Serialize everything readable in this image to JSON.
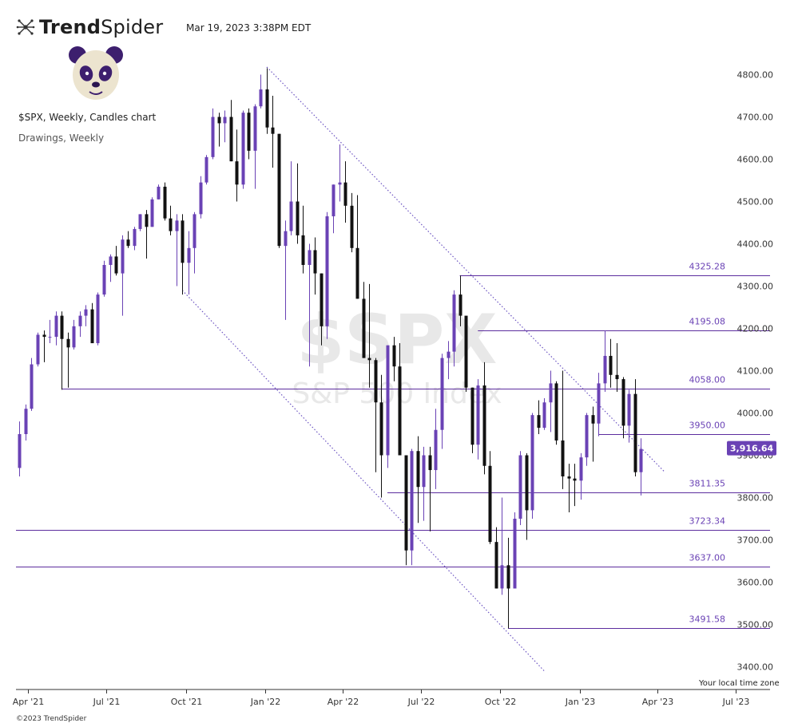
{
  "header": {
    "brand_bold": "Trend",
    "brand_light": "Spider",
    "timestamp": "Mar 19, 2023 3:38PM EDT",
    "chart_title": "$SPX, Weekly, Candles chart",
    "drawings_label": "Drawings, Weekly"
  },
  "footer": {
    "timezone_label": "Your local time zone",
    "copyright": "©2023 TrendSpider"
  },
  "colors": {
    "up": "#6a42b5",
    "down": "#111111",
    "level_line": "#5c2d9e",
    "level_label": "#6a42b5",
    "channel": "#6d55c2",
    "price_tag": "#6a42b5",
    "watermark": "#e8e8e8"
  },
  "icons": [
    "trendspider-logo-icon",
    "panda-avatar-icon"
  ],
  "chart_data": {
    "type": "candlestick",
    "symbol": "$SPX",
    "watermark_title": "$SPX",
    "watermark_subtitle": "S&P 500 Index",
    "y_ticks": [
      "3400.00",
      "3500.00",
      "3600.00",
      "3700.00",
      "3800.00",
      "3900.00",
      "4000.00",
      "4100.00",
      "4200.00",
      "4300.00",
      "4400.00",
      "4500.00",
      "4600.00",
      "4700.00",
      "4800.00"
    ],
    "y_range": [
      3330,
      4870
    ],
    "x_ticks": [
      {
        "label": "Apr '21",
        "date": "2021-04-01"
      },
      {
        "label": "Jul '21",
        "date": "2021-07-01"
      },
      {
        "label": "Oct '21",
        "date": "2021-10-01"
      },
      {
        "label": "Jan '22",
        "date": "2022-01-01"
      },
      {
        "label": "Apr '22",
        "date": "2022-04-01"
      },
      {
        "label": "Jul '22",
        "date": "2022-07-01"
      },
      {
        "label": "Oct '22",
        "date": "2022-10-01"
      },
      {
        "label": "Jan '23",
        "date": "2023-01-01"
      },
      {
        "label": "Apr '23",
        "date": "2023-04-01"
      },
      {
        "label": "Jul '23",
        "date": "2023-07-01"
      }
    ],
    "x_range": [
      "2021-03-18",
      "2023-08-10"
    ],
    "candles": [
      {
        "date": "2021-03-22",
        "o": 3870,
        "h": 3980,
        "l": 3850,
        "c": 3950
      },
      {
        "date": "2021-03-29",
        "o": 3950,
        "h": 4020,
        "l": 3935,
        "c": 4010
      },
      {
        "date": "2021-04-05",
        "o": 4010,
        "h": 4130,
        "l": 4005,
        "c": 4115
      },
      {
        "date": "2021-04-12",
        "o": 4115,
        "h": 4190,
        "l": 4110,
        "c": 4185
      },
      {
        "date": "2021-04-19",
        "o": 4185,
        "h": 4195,
        "l": 4120,
        "c": 4180
      },
      {
        "date": "2021-04-26",
        "o": 4180,
        "h": 4220,
        "l": 4165,
        "c": 4180
      },
      {
        "date": "2021-05-03",
        "o": 4180,
        "h": 4240,
        "l": 4160,
        "c": 4230
      },
      {
        "date": "2021-05-10",
        "o": 4230,
        "h": 4240,
        "l": 4055,
        "c": 4175
      },
      {
        "date": "2021-05-17",
        "o": 4175,
        "h": 4190,
        "l": 4060,
        "c": 4155
      },
      {
        "date": "2021-05-24",
        "o": 4155,
        "h": 4220,
        "l": 4150,
        "c": 4205
      },
      {
        "date": "2021-05-31",
        "o": 4205,
        "h": 4240,
        "l": 4180,
        "c": 4230
      },
      {
        "date": "2021-06-07",
        "o": 4230,
        "h": 4255,
        "l": 4205,
        "c": 4245
      },
      {
        "date": "2021-06-14",
        "o": 4245,
        "h": 4260,
        "l": 4165,
        "c": 4165
      },
      {
        "date": "2021-06-21",
        "o": 4165,
        "h": 4285,
        "l": 4160,
        "c": 4280
      },
      {
        "date": "2021-06-28",
        "o": 4280,
        "h": 4360,
        "l": 4275,
        "c": 4350
      },
      {
        "date": "2021-07-05",
        "o": 4350,
        "h": 4375,
        "l": 4310,
        "c": 4370
      },
      {
        "date": "2021-07-12",
        "o": 4370,
        "h": 4395,
        "l": 4325,
        "c": 4330
      },
      {
        "date": "2021-07-19",
        "o": 4330,
        "h": 4420,
        "l": 4230,
        "c": 4410
      },
      {
        "date": "2021-07-26",
        "o": 4410,
        "h": 4430,
        "l": 4390,
        "c": 4395
      },
      {
        "date": "2021-08-02",
        "o": 4395,
        "h": 4440,
        "l": 4385,
        "c": 4435
      },
      {
        "date": "2021-08-09",
        "o": 4435,
        "h": 4470,
        "l": 4430,
        "c": 4470
      },
      {
        "date": "2021-08-16",
        "o": 4470,
        "h": 4480,
        "l": 4365,
        "c": 4440
      },
      {
        "date": "2021-08-23",
        "o": 4440,
        "h": 4510,
        "l": 4440,
        "c": 4505
      },
      {
        "date": "2021-08-30",
        "o": 4505,
        "h": 4540,
        "l": 4505,
        "c": 4535
      },
      {
        "date": "2021-09-06",
        "o": 4535,
        "h": 4545,
        "l": 4455,
        "c": 4460
      },
      {
        "date": "2021-09-13",
        "o": 4460,
        "h": 4490,
        "l": 4420,
        "c": 4430
      },
      {
        "date": "2021-09-20",
        "o": 4430,
        "h": 4470,
        "l": 4300,
        "c": 4455
      },
      {
        "date": "2021-09-27",
        "o": 4455,
        "h": 4470,
        "l": 4280,
        "c": 4355
      },
      {
        "date": "2021-10-04",
        "o": 4355,
        "h": 4430,
        "l": 4280,
        "c": 4390
      },
      {
        "date": "2021-10-11",
        "o": 4390,
        "h": 4475,
        "l": 4330,
        "c": 4470
      },
      {
        "date": "2021-10-18",
        "o": 4470,
        "h": 4560,
        "l": 4460,
        "c": 4545
      },
      {
        "date": "2021-10-25",
        "o": 4545,
        "h": 4610,
        "l": 4540,
        "c": 4605
      },
      {
        "date": "2021-11-01",
        "o": 4605,
        "h": 4720,
        "l": 4600,
        "c": 4700
      },
      {
        "date": "2021-11-08",
        "o": 4700,
        "h": 4710,
        "l": 4630,
        "c": 4685
      },
      {
        "date": "2021-11-15",
        "o": 4685,
        "h": 4715,
        "l": 4640,
        "c": 4700
      },
      {
        "date": "2021-11-22",
        "o": 4700,
        "h": 4740,
        "l": 4595,
        "c": 4595
      },
      {
        "date": "2021-11-29",
        "o": 4595,
        "h": 4670,
        "l": 4500,
        "c": 4540
      },
      {
        "date": "2021-12-06",
        "o": 4540,
        "h": 4715,
        "l": 4530,
        "c": 4710
      },
      {
        "date": "2021-12-13",
        "o": 4710,
        "h": 4720,
        "l": 4600,
        "c": 4620
      },
      {
        "date": "2021-12-20",
        "o": 4620,
        "h": 4730,
        "l": 4530,
        "c": 4725
      },
      {
        "date": "2021-12-27",
        "o": 4725,
        "h": 4800,
        "l": 4720,
        "c": 4765
      },
      {
        "date": "2022-01-03",
        "o": 4765,
        "h": 4815,
        "l": 4660,
        "c": 4675
      },
      {
        "date": "2022-01-10",
        "o": 4675,
        "h": 4750,
        "l": 4580,
        "c": 4660
      },
      {
        "date": "2022-01-17",
        "o": 4660,
        "h": 4660,
        "l": 4390,
        "c": 4395
      },
      {
        "date": "2022-01-24",
        "o": 4395,
        "h": 4455,
        "l": 4220,
        "c": 4430
      },
      {
        "date": "2022-01-31",
        "o": 4430,
        "h": 4595,
        "l": 4420,
        "c": 4500
      },
      {
        "date": "2022-02-07",
        "o": 4500,
        "h": 4590,
        "l": 4400,
        "c": 4420
      },
      {
        "date": "2022-02-14",
        "o": 4420,
        "h": 4490,
        "l": 4330,
        "c": 4350
      },
      {
        "date": "2022-02-21",
        "o": 4350,
        "h": 4400,
        "l": 4110,
        "c": 4385
      },
      {
        "date": "2022-02-28",
        "o": 4385,
        "h": 4415,
        "l": 4280,
        "c": 4330
      },
      {
        "date": "2022-03-07",
        "o": 4330,
        "h": 4330,
        "l": 4160,
        "c": 4205
      },
      {
        "date": "2022-03-14",
        "o": 4205,
        "h": 4475,
        "l": 4175,
        "c": 4465
      },
      {
        "date": "2022-03-21",
        "o": 4465,
        "h": 4540,
        "l": 4425,
        "c": 4540
      },
      {
        "date": "2022-03-28",
        "o": 4540,
        "h": 4635,
        "l": 4500,
        "c": 4545
      },
      {
        "date": "2022-04-04",
        "o": 4545,
        "h": 4595,
        "l": 4450,
        "c": 4490
      },
      {
        "date": "2022-04-11",
        "o": 4490,
        "h": 4520,
        "l": 4380,
        "c": 4390
      },
      {
        "date": "2022-04-18",
        "o": 4390,
        "h": 4515,
        "l": 4270,
        "c": 4270
      },
      {
        "date": "2022-04-25",
        "o": 4270,
        "h": 4310,
        "l": 4130,
        "c": 4130
      },
      {
        "date": "2022-05-02",
        "o": 4130,
        "h": 4305,
        "l": 4060,
        "c": 4125
      },
      {
        "date": "2022-05-09",
        "o": 4125,
        "h": 4130,
        "l": 3860,
        "c": 4025
      },
      {
        "date": "2022-05-16",
        "o": 4025,
        "h": 4090,
        "l": 3800,
        "c": 3900
      },
      {
        "date": "2022-05-23",
        "o": 3900,
        "h": 4160,
        "l": 3870,
        "c": 4160
      },
      {
        "date": "2022-05-30",
        "o": 4160,
        "h": 4180,
        "l": 4075,
        "c": 4110
      },
      {
        "date": "2022-06-06",
        "o": 4110,
        "h": 4165,
        "l": 3900,
        "c": 3900
      },
      {
        "date": "2022-06-13",
        "o": 3900,
        "h": 3900,
        "l": 3640,
        "c": 3675
      },
      {
        "date": "2022-06-20",
        "o": 3675,
        "h": 3915,
        "l": 3640,
        "c": 3910
      },
      {
        "date": "2022-06-27",
        "o": 3910,
        "h": 3945,
        "l": 3740,
        "c": 3825
      },
      {
        "date": "2022-07-04",
        "o": 3825,
        "h": 3920,
        "l": 3745,
        "c": 3900
      },
      {
        "date": "2022-07-11",
        "o": 3900,
        "h": 3920,
        "l": 3720,
        "c": 3865
      },
      {
        "date": "2022-07-18",
        "o": 3865,
        "h": 4010,
        "l": 3820,
        "c": 3960
      },
      {
        "date": "2022-07-25",
        "o": 3960,
        "h": 4140,
        "l": 3915,
        "c": 4130
      },
      {
        "date": "2022-08-01",
        "o": 4130,
        "h": 4170,
        "l": 4080,
        "c": 4145
      },
      {
        "date": "2022-08-08",
        "o": 4145,
        "h": 4290,
        "l": 4110,
        "c": 4280
      },
      {
        "date": "2022-08-15",
        "o": 4280,
        "h": 4325,
        "l": 4205,
        "c": 4230
      },
      {
        "date": "2022-08-22",
        "o": 4230,
        "h": 4215,
        "l": 4050,
        "c": 4060
      },
      {
        "date": "2022-08-29",
        "o": 4060,
        "h": 4060,
        "l": 3905,
        "c": 3925
      },
      {
        "date": "2022-09-05",
        "o": 3925,
        "h": 4080,
        "l": 3890,
        "c": 4065
      },
      {
        "date": "2022-09-12",
        "o": 4065,
        "h": 4120,
        "l": 3855,
        "c": 3875
      },
      {
        "date": "2022-09-19",
        "o": 3875,
        "h": 3910,
        "l": 3690,
        "c": 3695
      },
      {
        "date": "2022-09-26",
        "o": 3695,
        "h": 3730,
        "l": 3585,
        "c": 3585
      },
      {
        "date": "2022-10-03",
        "o": 3585,
        "h": 3800,
        "l": 3570,
        "c": 3640
      },
      {
        "date": "2022-10-10",
        "o": 3640,
        "h": 3705,
        "l": 3491,
        "c": 3585
      },
      {
        "date": "2022-10-17",
        "o": 3585,
        "h": 3765,
        "l": 3600,
        "c": 3750
      },
      {
        "date": "2022-10-24",
        "o": 3750,
        "h": 3910,
        "l": 3735,
        "c": 3900
      },
      {
        "date": "2022-10-31",
        "o": 3900,
        "h": 3905,
        "l": 3700,
        "c": 3770
      },
      {
        "date": "2022-11-07",
        "o": 3770,
        "h": 4000,
        "l": 3750,
        "c": 3995
      },
      {
        "date": "2022-11-14",
        "o": 3995,
        "h": 4030,
        "l": 3950,
        "c": 3965
      },
      {
        "date": "2022-11-21",
        "o": 3965,
        "h": 4035,
        "l": 3960,
        "c": 4025
      },
      {
        "date": "2022-11-28",
        "o": 4025,
        "h": 4100,
        "l": 3955,
        "c": 4070
      },
      {
        "date": "2022-12-05",
        "o": 4070,
        "h": 4075,
        "l": 3925,
        "c": 3935
      },
      {
        "date": "2022-12-12",
        "o": 3935,
        "h": 4100,
        "l": 3820,
        "c": 3850
      },
      {
        "date": "2022-12-19",
        "o": 3850,
        "h": 3880,
        "l": 3765,
        "c": 3845
      },
      {
        "date": "2022-12-26",
        "o": 3845,
        "h": 3880,
        "l": 3780,
        "c": 3840
      },
      {
        "date": "2023-01-02",
        "o": 3840,
        "h": 3905,
        "l": 3795,
        "c": 3895
      },
      {
        "date": "2023-01-09",
        "o": 3895,
        "h": 4000,
        "l": 3875,
        "c": 3995
      },
      {
        "date": "2023-01-16",
        "o": 3995,
        "h": 4015,
        "l": 3885,
        "c": 3975
      },
      {
        "date": "2023-01-23",
        "o": 3975,
        "h": 4095,
        "l": 3945,
        "c": 4070
      },
      {
        "date": "2023-01-30",
        "o": 4070,
        "h": 4195,
        "l": 4050,
        "c": 4135
      },
      {
        "date": "2023-02-06",
        "o": 4135,
        "h": 4175,
        "l": 4060,
        "c": 4090
      },
      {
        "date": "2023-02-13",
        "o": 4090,
        "h": 4165,
        "l": 4050,
        "c": 4080
      },
      {
        "date": "2023-02-20",
        "o": 4080,
        "h": 4085,
        "l": 3940,
        "c": 3970
      },
      {
        "date": "2023-02-27",
        "o": 3970,
        "h": 4055,
        "l": 3930,
        "c": 4045
      },
      {
        "date": "2023-03-06",
        "o": 4045,
        "h": 4080,
        "l": 3850,
        "c": 3860
      },
      {
        "date": "2023-03-13",
        "o": 3860,
        "h": 3940,
        "l": 3805,
        "c": 3915
      }
    ],
    "levels": [
      {
        "value": 4325.28,
        "label": "4325.28",
        "start": "2022-08-15"
      },
      {
        "value": 4195.08,
        "label": "4195.08",
        "start": "2022-09-05"
      },
      {
        "value": 4058.0,
        "label": "4058.00",
        "start": "2021-05-10"
      },
      {
        "value": 3950.0,
        "label": "3950.00",
        "start": "2023-01-23"
      },
      {
        "value": 3811.35,
        "label": "3811.35",
        "start": "2022-05-23"
      },
      {
        "value": 3723.34,
        "label": "3723.34",
        "start": "2021-03-18"
      },
      {
        "value": 3637.0,
        "label": "3637.00",
        "start": "2021-03-18"
      },
      {
        "value": 3491.58,
        "label": "3491.58",
        "start": "2022-10-10"
      }
    ],
    "channel_lines": [
      {
        "start": {
          "date": "2022-01-03",
          "value": 4818
        },
        "end": {
          "date": "2023-04-10",
          "value": 3860
        }
      },
      {
        "start": {
          "date": "2021-09-27",
          "value": 4290
        },
        "end": {
          "date": "2022-11-21",
          "value": 3390
        }
      }
    ],
    "last_price": {
      "value": 3916.64,
      "label": "3,916.64"
    }
  }
}
